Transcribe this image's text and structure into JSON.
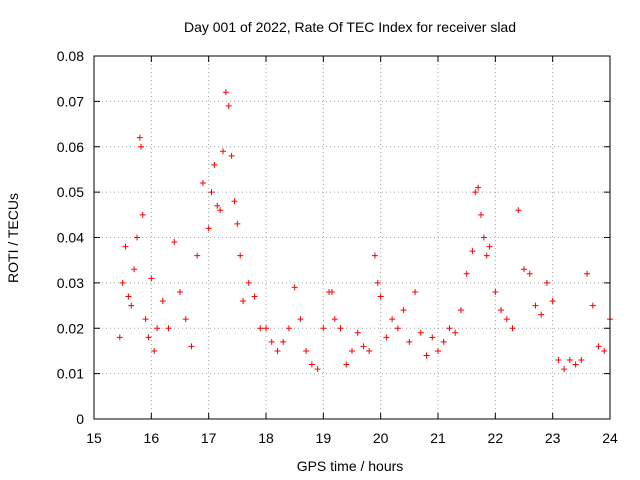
{
  "chart_data": {
    "type": "scatter",
    "title": "Day 001 of 2022, Rate Of TEC Index for receiver slad",
    "xlabel": "GPS time / hours",
    "ylabel": "ROTI / TECUs",
    "xlim": [
      15,
      24
    ],
    "ylim": [
      0,
      0.08
    ],
    "xticks": [
      "15",
      "16",
      "17",
      "18",
      "19",
      "20",
      "21",
      "22",
      "23",
      "24"
    ],
    "yticks": [
      "0",
      "0.01",
      "0.02",
      "0.03",
      "0.04",
      "0.05",
      "0.06",
      "0.07",
      "0.08"
    ],
    "grid": true,
    "marker": "+",
    "color": "#ff0000",
    "series": [
      {
        "x": [
          15.45,
          15.5,
          15.55,
          15.6,
          15.65,
          15.7,
          15.75,
          15.8,
          15.82,
          15.85,
          15.9,
          15.95,
          16.0,
          16.05,
          16.1,
          16.2,
          16.3,
          16.4,
          16.5,
          16.6,
          16.7,
          16.8,
          16.9,
          17.0,
          17.05,
          17.1,
          17.15,
          17.2,
          17.25,
          17.3,
          17.35,
          17.4,
          17.45,
          17.5,
          17.55,
          17.6,
          17.7,
          17.8,
          17.9,
          18.0,
          18.1,
          18.2,
          18.3,
          18.4,
          18.5,
          18.6,
          18.7,
          18.8,
          18.9,
          19.0,
          19.1,
          19.15,
          19.2,
          19.3,
          19.4,
          19.5,
          19.6,
          19.7,
          19.8,
          19.9,
          19.95,
          20.0,
          20.1,
          20.2,
          20.3,
          20.4,
          20.5,
          20.6,
          20.7,
          20.8,
          20.9,
          21.0,
          21.1,
          21.2,
          21.3,
          21.4,
          21.5,
          21.6,
          21.65,
          21.7,
          21.75,
          21.8,
          21.85,
          21.9,
          22.0,
          22.1,
          22.2,
          22.3,
          22.4,
          22.5,
          22.6,
          22.7,
          22.8,
          22.9,
          23.0,
          23.1,
          23.2,
          23.3,
          23.4,
          23.5,
          23.6,
          23.7,
          23.8,
          23.9,
          24.0
        ],
        "y": [
          0.018,
          0.03,
          0.038,
          0.027,
          0.025,
          0.033,
          0.04,
          0.062,
          0.06,
          0.045,
          0.022,
          0.018,
          0.031,
          0.015,
          0.02,
          0.026,
          0.02,
          0.039,
          0.028,
          0.022,
          0.016,
          0.036,
          0.052,
          0.042,
          0.05,
          0.056,
          0.047,
          0.046,
          0.059,
          0.072,
          0.069,
          0.058,
          0.048,
          0.043,
          0.036,
          0.026,
          0.03,
          0.027,
          0.02,
          0.02,
          0.017,
          0.015,
          0.017,
          0.02,
          0.029,
          0.022,
          0.015,
          0.012,
          0.011,
          0.02,
          0.028,
          0.028,
          0.022,
          0.02,
          0.012,
          0.015,
          0.019,
          0.016,
          0.015,
          0.036,
          0.03,
          0.027,
          0.018,
          0.022,
          0.02,
          0.024,
          0.017,
          0.028,
          0.019,
          0.014,
          0.018,
          0.015,
          0.017,
          0.02,
          0.019,
          0.024,
          0.032,
          0.037,
          0.05,
          0.051,
          0.045,
          0.04,
          0.036,
          0.038,
          0.028,
          0.024,
          0.022,
          0.02,
          0.046,
          0.033,
          0.032,
          0.025,
          0.023,
          0.03,
          0.026,
          0.013,
          0.011,
          0.013,
          0.012,
          0.013,
          0.032,
          0.025,
          0.016,
          0.015,
          0.022
        ]
      }
    ]
  }
}
